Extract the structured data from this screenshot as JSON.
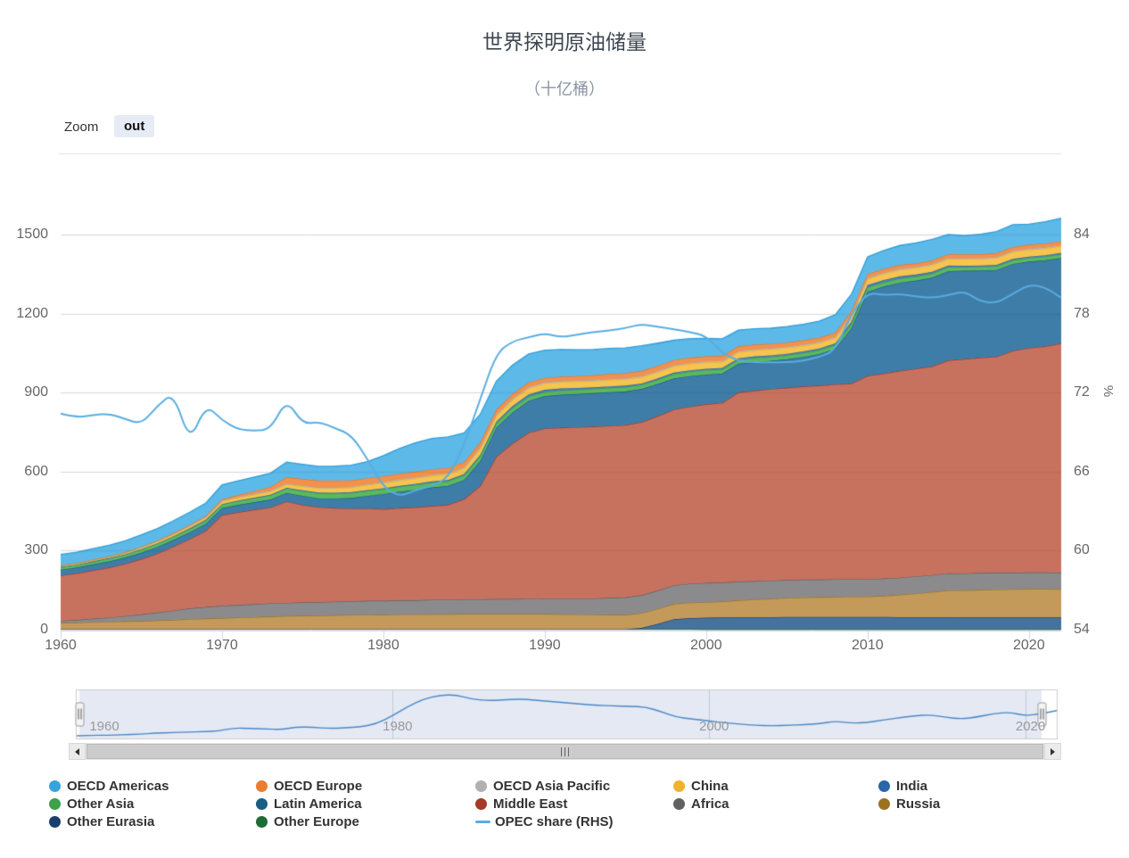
{
  "header": {
    "title": "世界探明原油储量",
    "subtitle": "（十亿桶）"
  },
  "toolbar": {
    "zoom_label": "Zoom",
    "zoom_out_label": "out"
  },
  "axes": {
    "y_left": {
      "ticks": [
        0,
        300,
        600,
        900,
        1200,
        1500
      ]
    },
    "y_right": {
      "ticks": [
        54,
        60,
        66,
        72,
        78,
        84
      ],
      "title": "%"
    },
    "x": {
      "ticks": [
        1960,
        1970,
        1980,
        1990,
        2000,
        2010,
        2020
      ]
    },
    "navigator_x": {
      "ticks": [
        1960,
        1980,
        2000,
        2020
      ]
    }
  },
  "legend": {
    "items": [
      {
        "label": "OECD Americas",
        "color": "#36a3dd",
        "marker": "circle"
      },
      {
        "label": "OECD Europe",
        "color": "#ec7c30",
        "marker": "circle"
      },
      {
        "label": "OECD Asia Pacific",
        "color": "#b1b1b1",
        "marker": "circle"
      },
      {
        "label": "China",
        "color": "#f0b429",
        "marker": "circle"
      },
      {
        "label": "India",
        "color": "#2a66a8",
        "marker": "circle"
      },
      {
        "label": "Other Asia",
        "color": "#3ba24a",
        "marker": "circle"
      },
      {
        "label": "Latin America",
        "color": "#175d86",
        "marker": "circle"
      },
      {
        "label": "Middle East",
        "color": "#a63a2a",
        "marker": "circle"
      },
      {
        "label": "Africa",
        "color": "#616161",
        "marker": "circle"
      },
      {
        "label": "Russia",
        "color": "#9c7220",
        "marker": "circle"
      },
      {
        "label": "Other Eurasia",
        "color": "#1c3e6e",
        "marker": "circle"
      },
      {
        "label": "Other Europe",
        "color": "#1d6b35",
        "marker": "circle"
      },
      {
        "label": "OPEC share (RHS)",
        "color": "#58ade2",
        "marker": "line"
      }
    ]
  },
  "chart_data": {
    "type": "area",
    "stacking": "normal",
    "title": "世界探明原油储量",
    "subtitle": "（十亿桶）",
    "xlabel": "",
    "ylabel_left": "十亿桶",
    "ylabel_right": "%",
    "y_left_range": [
      0,
      1500
    ],
    "y_right_range": [
      54,
      84
    ],
    "x_range": [
      1960,
      2022
    ],
    "grid": true,
    "legend_position": "bottom",
    "x": [
      1960,
      1961,
      1962,
      1963,
      1964,
      1965,
      1966,
      1967,
      1968,
      1969,
      1970,
      1971,
      1972,
      1973,
      1974,
      1975,
      1976,
      1977,
      1978,
      1979,
      1980,
      1981,
      1982,
      1983,
      1984,
      1985,
      1986,
      1987,
      1988,
      1989,
      1990,
      1991,
      1992,
      1993,
      1994,
      1995,
      1996,
      1997,
      1998,
      1999,
      2000,
      2001,
      2002,
      2003,
      2004,
      2005,
      2006,
      2007,
      2008,
      2009,
      2010,
      2011,
      2012,
      2013,
      2014,
      2015,
      2016,
      2017,
      2018,
      2019,
      2020,
      2021,
      2022
    ],
    "series": [
      {
        "name": "Other Europe",
        "fill": "#2f7d47",
        "line": "#205e34",
        "values": [
          2,
          2,
          2,
          2,
          2,
          2,
          2,
          2,
          2,
          2,
          2,
          2,
          2,
          2,
          2,
          2,
          2,
          2,
          2,
          2,
          1.8,
          1.8,
          1.8,
          1.8,
          1.8,
          1.8,
          1.8,
          1.8,
          1.8,
          1.8,
          1.8,
          1.8,
          1.8,
          1.8,
          1.8,
          1.8,
          1.8,
          1.8,
          1.8,
          1.8,
          1.5,
          1.5,
          1.5,
          1.5,
          1.5,
          1.5,
          1.5,
          1.5,
          1.5,
          1.5,
          1.5,
          1.5,
          1.5,
          1.5,
          1.5,
          1.5,
          1.5,
          1.5,
          1.5,
          1.5,
          1.5,
          1.5,
          1.5
        ]
      },
      {
        "name": "Other Eurasia",
        "fill": "#46739e",
        "line": "#1c3e6e",
        "values": [
          0,
          0,
          0,
          0,
          0,
          0,
          0,
          0,
          0,
          0,
          0,
          0,
          0,
          0,
          0,
          0,
          0,
          0,
          0,
          0,
          0,
          0,
          0,
          0,
          0,
          0,
          0,
          0,
          0,
          0,
          0,
          0,
          0,
          0,
          0,
          0,
          5,
          20,
          38,
          42,
          44,
          45,
          46,
          46,
          46,
          47,
          47,
          47,
          47,
          47,
          47,
          47,
          46,
          46,
          46,
          46,
          45,
          45,
          45,
          45,
          45,
          45,
          45
        ]
      },
      {
        "name": "Russia",
        "fill": "#c49a5a",
        "line": "#9a7322",
        "values": [
          24,
          25,
          27,
          28,
          30,
          31,
          33,
          35,
          38,
          40,
          42,
          44,
          46,
          48,
          50,
          51,
          52,
          53,
          54,
          55,
          55,
          56,
          56,
          57,
          57,
          58,
          58,
          58,
          58,
          58,
          58,
          57,
          56,
          55,
          55,
          55,
          56,
          57,
          58,
          59,
          59,
          61,
          64,
          67,
          70,
          72,
          74,
          75,
          76,
          77,
          77,
          80,
          85,
          90,
          95,
          102,
          103,
          105,
          106,
          107,
          108,
          108,
          107
        ]
      },
      {
        "name": "Africa",
        "fill": "#8b8b8d",
        "line": "#606062",
        "values": [
          8,
          10,
          13,
          16,
          20,
          25,
          30,
          36,
          41,
          44,
          47,
          48,
          49,
          50,
          50,
          51,
          51,
          52,
          52,
          53,
          53,
          54,
          54,
          55,
          55,
          56,
          56,
          57,
          57,
          58,
          59,
          60,
          61,
          62,
          64,
          66,
          68,
          70,
          71,
          72,
          73,
          72,
          71,
          70,
          69,
          68,
          68,
          67,
          67,
          66,
          66,
          66,
          65,
          65,
          65,
          65,
          64,
          64,
          64,
          63,
          63,
          63,
          63
        ]
      },
      {
        "name": "Middle East",
        "fill": "#c7725f",
        "line": "#a63a2a",
        "values": [
          172,
          177,
          183,
          190,
          198,
          210,
          224,
          243,
          263,
          290,
          344,
          352,
          358,
          364,
          385,
          370,
          360,
          355,
          352,
          350,
          348,
          350,
          353,
          356,
          360,
          380,
          430,
          540,
          590,
          630,
          645,
          648,
          650,
          652,
          653,
          654,
          657,
          662,
          667,
          672,
          678,
          682,
          718,
          723,
          727,
          730,
          733,
          736,
          740,
          743,
          772,
          778,
          785,
          788,
          792,
          808,
          814,
          817,
          820,
          842,
          852,
          858,
          870
        ]
      },
      {
        "name": "Latin America",
        "fill": "#3e7da7",
        "line": "#175d86",
        "values": [
          22,
          22,
          23,
          23,
          24,
          24,
          25,
          25,
          26,
          26,
          27,
          28,
          29,
          30,
          32,
          34,
          34,
          36,
          40,
          48,
          57,
          62,
          66,
          70,
          72,
          72,
          95,
          110,
          118,
          121,
          123,
          125,
          126,
          127,
          128,
          128,
          126,
          122,
          118,
          116,
          113,
          111,
          109,
          108,
          107,
          108,
          112,
          120,
          135,
          210,
          320,
          330,
          335,
          335,
          337,
          339,
          335,
          331,
          329,
          330,
          328,
          327,
          325
        ]
      },
      {
        "name": "Other Asia",
        "fill": "#5cb85f",
        "line": "#3ba24a",
        "values": [
          11,
          11,
          11,
          12,
          12,
          13,
          13,
          13,
          14,
          14,
          14,
          15,
          16,
          17,
          18,
          19,
          19,
          19,
          19,
          19,
          19,
          19,
          19,
          19,
          18,
          18,
          18,
          17,
          17,
          16,
          16,
          16,
          16,
          16,
          16,
          16,
          16,
          16,
          17,
          17,
          17,
          16,
          16,
          16,
          15,
          15,
          15,
          15,
          15,
          16,
          16,
          16,
          15,
          15,
          15,
          15,
          14,
          14,
          14,
          14,
          14,
          14,
          14
        ]
      },
      {
        "name": "India",
        "fill": "#4d80b8",
        "line": "#2a66a8",
        "values": [
          0.5,
          0.5,
          0.5,
          0.5,
          0.5,
          1,
          1,
          1,
          1,
          1,
          1,
          1,
          1,
          1,
          1,
          2,
          3,
          3,
          3,
          3,
          3,
          3,
          4,
          4,
          4,
          5,
          5,
          6,
          7,
          8,
          8,
          8,
          7,
          6,
          6,
          6,
          5,
          5,
          5,
          5,
          5,
          5,
          5,
          6,
          6,
          6,
          6,
          6,
          5,
          9,
          9,
          9,
          9,
          8,
          7,
          6,
          5,
          5,
          5,
          5,
          5,
          5,
          5
        ]
      },
      {
        "name": "China",
        "fill": "#f6c44f",
        "line": "#edb11e",
        "values": [
          2,
          2,
          3,
          3,
          4,
          5,
          6,
          7,
          8,
          9,
          10,
          11,
          12,
          13,
          14,
          15,
          16,
          17,
          18,
          19,
          20,
          20,
          21,
          21,
          22,
          22,
          23,
          23,
          24,
          24,
          24,
          24,
          24,
          24,
          24,
          24,
          24,
          24,
          24,
          24,
          24,
          23,
          23,
          23,
          23,
          22,
          22,
          21,
          21,
          21,
          23,
          23,
          24,
          24,
          25,
          25,
          25,
          25,
          26,
          26,
          26,
          26,
          26
        ]
      },
      {
        "name": "OECD Asia Pacific",
        "fill": "#c2c2c2",
        "line": "#a9a9a9",
        "values": [
          2,
          2,
          2,
          2,
          2,
          2,
          2,
          2,
          2,
          2,
          3,
          3,
          3,
          3,
          3,
          3,
          3,
          3,
          3,
          3,
          4,
          4,
          4,
          4,
          4,
          4,
          4,
          4,
          4,
          4,
          4,
          4,
          4,
          4,
          4,
          4,
          4,
          4,
          4,
          4,
          4,
          4,
          4,
          4,
          4,
          4,
          4,
          4,
          4,
          4,
          4,
          4,
          4,
          4,
          4,
          4,
          4,
          4,
          4,
          4,
          4,
          4,
          3
        ]
      },
      {
        "name": "OECD Europe",
        "fill": "#f2914d",
        "line": "#e87427",
        "values": [
          2,
          2,
          2,
          2,
          2,
          2,
          2,
          3,
          3,
          4,
          5,
          7,
          10,
          14,
          24,
          25,
          26,
          26,
          24,
          23,
          22,
          22,
          21,
          21,
          20,
          20,
          20,
          19,
          18,
          18,
          17,
          17,
          17,
          18,
          19,
          19,
          20,
          20,
          20,
          20,
          19,
          19,
          18,
          18,
          17,
          17,
          16,
          16,
          16,
          15,
          15,
          15,
          15,
          14,
          14,
          14,
          14,
          14,
          15,
          15,
          15,
          15,
          15
        ]
      },
      {
        "name": "OECD Americas",
        "fill": "#5db9e7",
        "line": "#2f9eda",
        "values": [
          40,
          41,
          41,
          42,
          43,
          45,
          46,
          47,
          48,
          49,
          55,
          54,
          53,
          52,
          57,
          56,
          54,
          55,
          57,
          63,
          78,
          96,
          110,
          117,
          118,
          110,
          107,
          108,
          110,
          108,
          105,
          103,
          100,
          98,
          97,
          96,
          95,
          86,
          75,
          72,
          68,
          65,
          62,
          60,
          59,
          60,
          61,
          63,
          68,
          64,
          65,
          70,
          74,
          78,
          80,
          75,
          72,
          76,
          82,
          85,
          78,
          82,
          88
        ]
      }
    ],
    "line_series": {
      "name": "OPEC share (RHS)",
      "color": "#58ade2",
      "axis": "right",
      "values": [
        70.4,
        70.1,
        70.3,
        70.4,
        70.0,
        69.6,
        71.0,
        72.0,
        68.2,
        71.1,
        69.9,
        69.2,
        69.1,
        69.2,
        71.5,
        69.6,
        69.8,
        69.3,
        68.8,
        67.0,
        64.8,
        64.1,
        64.6,
        64.9,
        65.5,
        68.0,
        71.5,
        75.0,
        75.9,
        76.2,
        76.5,
        76.2,
        76.4,
        76.6,
        76.7,
        76.9,
        77.2,
        77.0,
        76.8,
        76.6,
        76.3,
        75.0,
        74.4,
        74.3,
        74.3,
        74.3,
        74.4,
        74.7,
        75.2,
        78.0,
        79.6,
        79.4,
        79.5,
        79.3,
        79.2,
        79.4,
        79.7,
        78.9,
        78.8,
        79.5,
        80.2,
        80.0,
        79.2
      ]
    },
    "navigator_series": "OECD Americas"
  }
}
